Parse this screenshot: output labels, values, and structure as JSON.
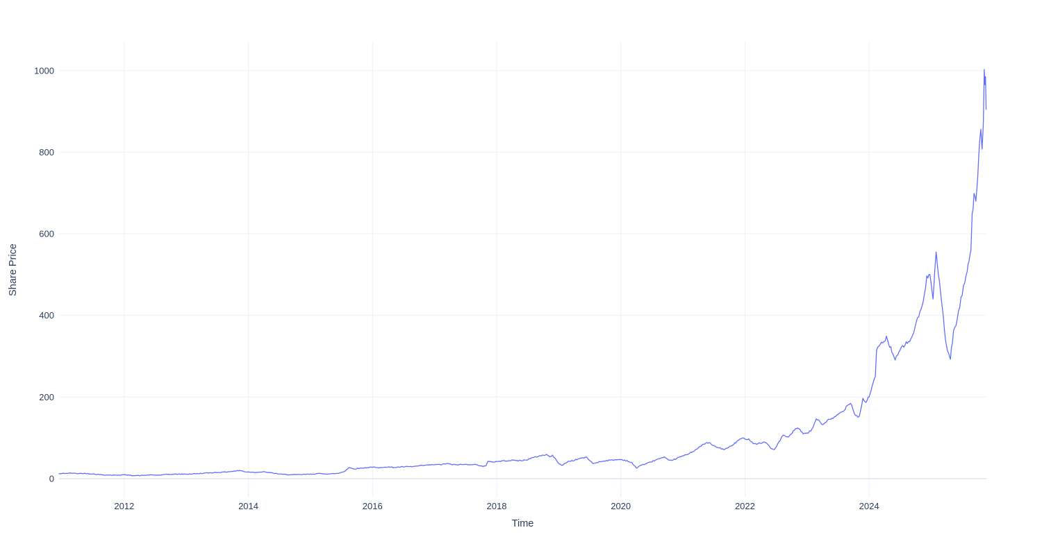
{
  "figure": {
    "background": "#ffffff",
    "text_color": "#2a3f5f",
    "grid_color": "#ebf0f8",
    "zeroline_color": "#e5eaf3",
    "line_color": "#636efa"
  },
  "chart_data": {
    "type": "line",
    "title": "",
    "xlabel": "Time",
    "ylabel": "Share Price",
    "grid": true,
    "legend_position": "none",
    "x_ticks": [
      2012,
      2014,
      2016,
      2018,
      2020,
      2022,
      2024
    ],
    "y_ticks": [
      0,
      200,
      400,
      600,
      800,
      1000
    ],
    "x_range": [
      2010.95,
      2025.89
    ],
    "y_range": [
      -46,
      1071
    ],
    "series": [
      {
        "name": "Share Price",
        "color": "#636efa",
        "points": [
          [
            2010.95,
            12
          ],
          [
            2011.05,
            13
          ],
          [
            2011.15,
            13.5
          ],
          [
            2011.25,
            12.5
          ],
          [
            2011.35,
            13
          ],
          [
            2011.5,
            11.5
          ],
          [
            2011.6,
            10
          ],
          [
            2011.7,
            9
          ],
          [
            2011.85,
            8.5
          ],
          [
            2012.0,
            9.5
          ],
          [
            2012.1,
            8
          ],
          [
            2012.25,
            7.5
          ],
          [
            2012.4,
            9
          ],
          [
            2012.55,
            8.5
          ],
          [
            2012.7,
            10.5
          ],
          [
            2012.85,
            11
          ],
          [
            2013.0,
            11
          ],
          [
            2013.15,
            12
          ],
          [
            2013.3,
            13.5
          ],
          [
            2013.45,
            15
          ],
          [
            2013.6,
            16
          ],
          [
            2013.75,
            18
          ],
          [
            2013.86,
            20
          ],
          [
            2013.95,
            17
          ],
          [
            2014.1,
            15.5
          ],
          [
            2014.25,
            16.5
          ],
          [
            2014.4,
            13.5
          ],
          [
            2014.55,
            10.5
          ],
          [
            2014.7,
            9.5
          ],
          [
            2014.85,
            10
          ],
          [
            2015.0,
            11
          ],
          [
            2015.15,
            12.5
          ],
          [
            2015.3,
            11.5
          ],
          [
            2015.45,
            13
          ],
          [
            2015.55,
            18
          ],
          [
            2015.62,
            27
          ],
          [
            2015.7,
            24
          ],
          [
            2015.8,
            25.5
          ],
          [
            2015.9,
            27
          ],
          [
            2016.0,
            28.5
          ],
          [
            2016.1,
            26
          ],
          [
            2016.2,
            29
          ],
          [
            2016.35,
            27.5
          ],
          [
            2016.5,
            29
          ],
          [
            2016.65,
            29.5
          ],
          [
            2016.8,
            32
          ],
          [
            2016.95,
            34
          ],
          [
            2017.1,
            34.5
          ],
          [
            2017.2,
            37
          ],
          [
            2017.3,
            34
          ],
          [
            2017.45,
            34.5
          ],
          [
            2017.6,
            35
          ],
          [
            2017.7,
            33.5
          ],
          [
            2017.78,
            30
          ],
          [
            2017.83,
            31
          ],
          [
            2017.86,
            43
          ],
          [
            2017.95,
            41
          ],
          [
            2018.1,
            43.5
          ],
          [
            2018.25,
            45
          ],
          [
            2018.4,
            44
          ],
          [
            2018.5,
            47
          ],
          [
            2018.6,
            52
          ],
          [
            2018.7,
            56
          ],
          [
            2018.8,
            59
          ],
          [
            2018.87,
            53
          ],
          [
            2018.9,
            57
          ],
          [
            2019.0,
            38
          ],
          [
            2019.05,
            32
          ],
          [
            2019.15,
            42
          ],
          [
            2019.25,
            45
          ],
          [
            2019.35,
            50
          ],
          [
            2019.45,
            52
          ],
          [
            2019.55,
            37
          ],
          [
            2019.65,
            41
          ],
          [
            2019.75,
            44
          ],
          [
            2019.9,
            46
          ],
          [
            2020.0,
            47
          ],
          [
            2020.1,
            44
          ],
          [
            2020.18,
            38
          ],
          [
            2020.25,
            26
          ],
          [
            2020.32,
            33
          ],
          [
            2020.4,
            36
          ],
          [
            2020.5,
            42
          ],
          [
            2020.6,
            48
          ],
          [
            2020.7,
            52
          ],
          [
            2020.78,
            44
          ],
          [
            2020.88,
            48
          ],
          [
            2020.95,
            53
          ],
          [
            2021.05,
            58
          ],
          [
            2021.15,
            66
          ],
          [
            2021.25,
            75
          ],
          [
            2021.35,
            86
          ],
          [
            2021.42,
            88
          ],
          [
            2021.5,
            80
          ],
          [
            2021.6,
            74
          ],
          [
            2021.68,
            72
          ],
          [
            2021.78,
            80
          ],
          [
            2021.85,
            88
          ],
          [
            2021.92,
            97
          ],
          [
            2022.0,
            99
          ],
          [
            2022.08,
            95
          ],
          [
            2022.15,
            85
          ],
          [
            2022.25,
            87
          ],
          [
            2022.33,
            90
          ],
          [
            2022.42,
            74
          ],
          [
            2022.47,
            71
          ],
          [
            2022.55,
            90
          ],
          [
            2022.62,
            107
          ],
          [
            2022.7,
            100
          ],
          [
            2022.78,
            116
          ],
          [
            2022.85,
            126
          ],
          [
            2022.92,
            112
          ],
          [
            2023.0,
            110
          ],
          [
            2023.08,
            120
          ],
          [
            2023.15,
            148
          ],
          [
            2023.25,
            132
          ],
          [
            2023.33,
            143
          ],
          [
            2023.42,
            147
          ],
          [
            2023.5,
            158
          ],
          [
            2023.58,
            165
          ],
          [
            2023.65,
            180
          ],
          [
            2023.7,
            187
          ],
          [
            2023.78,
            155
          ],
          [
            2023.84,
            151
          ],
          [
            2023.9,
            196
          ],
          [
            2023.95,
            186
          ],
          [
            2024.0,
            203
          ],
          [
            2024.05,
            225
          ],
          [
            2024.1,
            250
          ],
          [
            2024.12,
            318
          ],
          [
            2024.2,
            330
          ],
          [
            2024.28,
            345
          ],
          [
            2024.35,
            320
          ],
          [
            2024.42,
            290
          ],
          [
            2024.5,
            315
          ],
          [
            2024.58,
            330
          ],
          [
            2024.65,
            335
          ],
          [
            2024.72,
            360
          ],
          [
            2024.8,
            400
          ],
          [
            2024.87,
            430
          ],
          [
            2024.93,
            490
          ],
          [
            2024.98,
            507
          ],
          [
            2025.03,
            445
          ],
          [
            2025.08,
            555
          ],
          [
            2025.13,
            480
          ],
          [
            2025.18,
            420
          ],
          [
            2025.23,
            340
          ],
          [
            2025.28,
            305
          ],
          [
            2025.31,
            296
          ],
          [
            2025.36,
            360
          ],
          [
            2025.42,
            390
          ],
          [
            2025.48,
            440
          ],
          [
            2025.54,
            480
          ],
          [
            2025.58,
            515
          ],
          [
            2025.61,
            540
          ],
          [
            2025.64,
            560
          ],
          [
            2025.66,
            650
          ],
          [
            2025.69,
            690
          ],
          [
            2025.72,
            685
          ],
          [
            2025.75,
            745
          ],
          [
            2025.78,
            820
          ],
          [
            2025.8,
            845
          ],
          [
            2025.82,
            800
          ],
          [
            2025.84,
            860
          ],
          [
            2025.855,
            1010
          ],
          [
            2025.865,
            960
          ],
          [
            2025.875,
            985
          ],
          [
            2025.885,
            905
          ]
        ]
      }
    ]
  }
}
